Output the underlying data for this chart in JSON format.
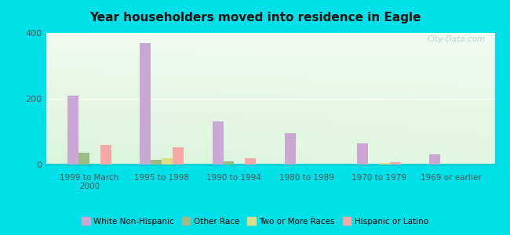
{
  "title": "Year householders moved into residence in Eagle",
  "categories": [
    "1999 to March\n2000",
    "1995 to 1998",
    "1990 to 1994",
    "1980 to 1989",
    "1970 to 1979",
    "1969 or earlier"
  ],
  "series": {
    "White Non-Hispanic": [
      210,
      370,
      130,
      95,
      65,
      30
    ],
    "Other Race": [
      35,
      15,
      10,
      0,
      0,
      0
    ],
    "Two or More Races": [
      0,
      18,
      0,
      0,
      4,
      0
    ],
    "Hispanic or Latino": [
      60,
      52,
      18,
      0,
      6,
      0
    ]
  },
  "colors": {
    "White Non-Hispanic": "#c9a8d4",
    "Other Race": "#99bb88",
    "Two or More Races": "#dddd88",
    "Hispanic or Latino": "#f4a8a8"
  },
  "ylim": [
    0,
    400
  ],
  "yticks": [
    0,
    200,
    400
  ],
  "background_outer": "#00e0e8",
  "watermark": "City-Data.com",
  "bar_width": 0.15,
  "legend_names": [
    "White Non-Hispanic",
    "Other Race",
    "Two or More Races",
    "Hispanic or Latino"
  ]
}
